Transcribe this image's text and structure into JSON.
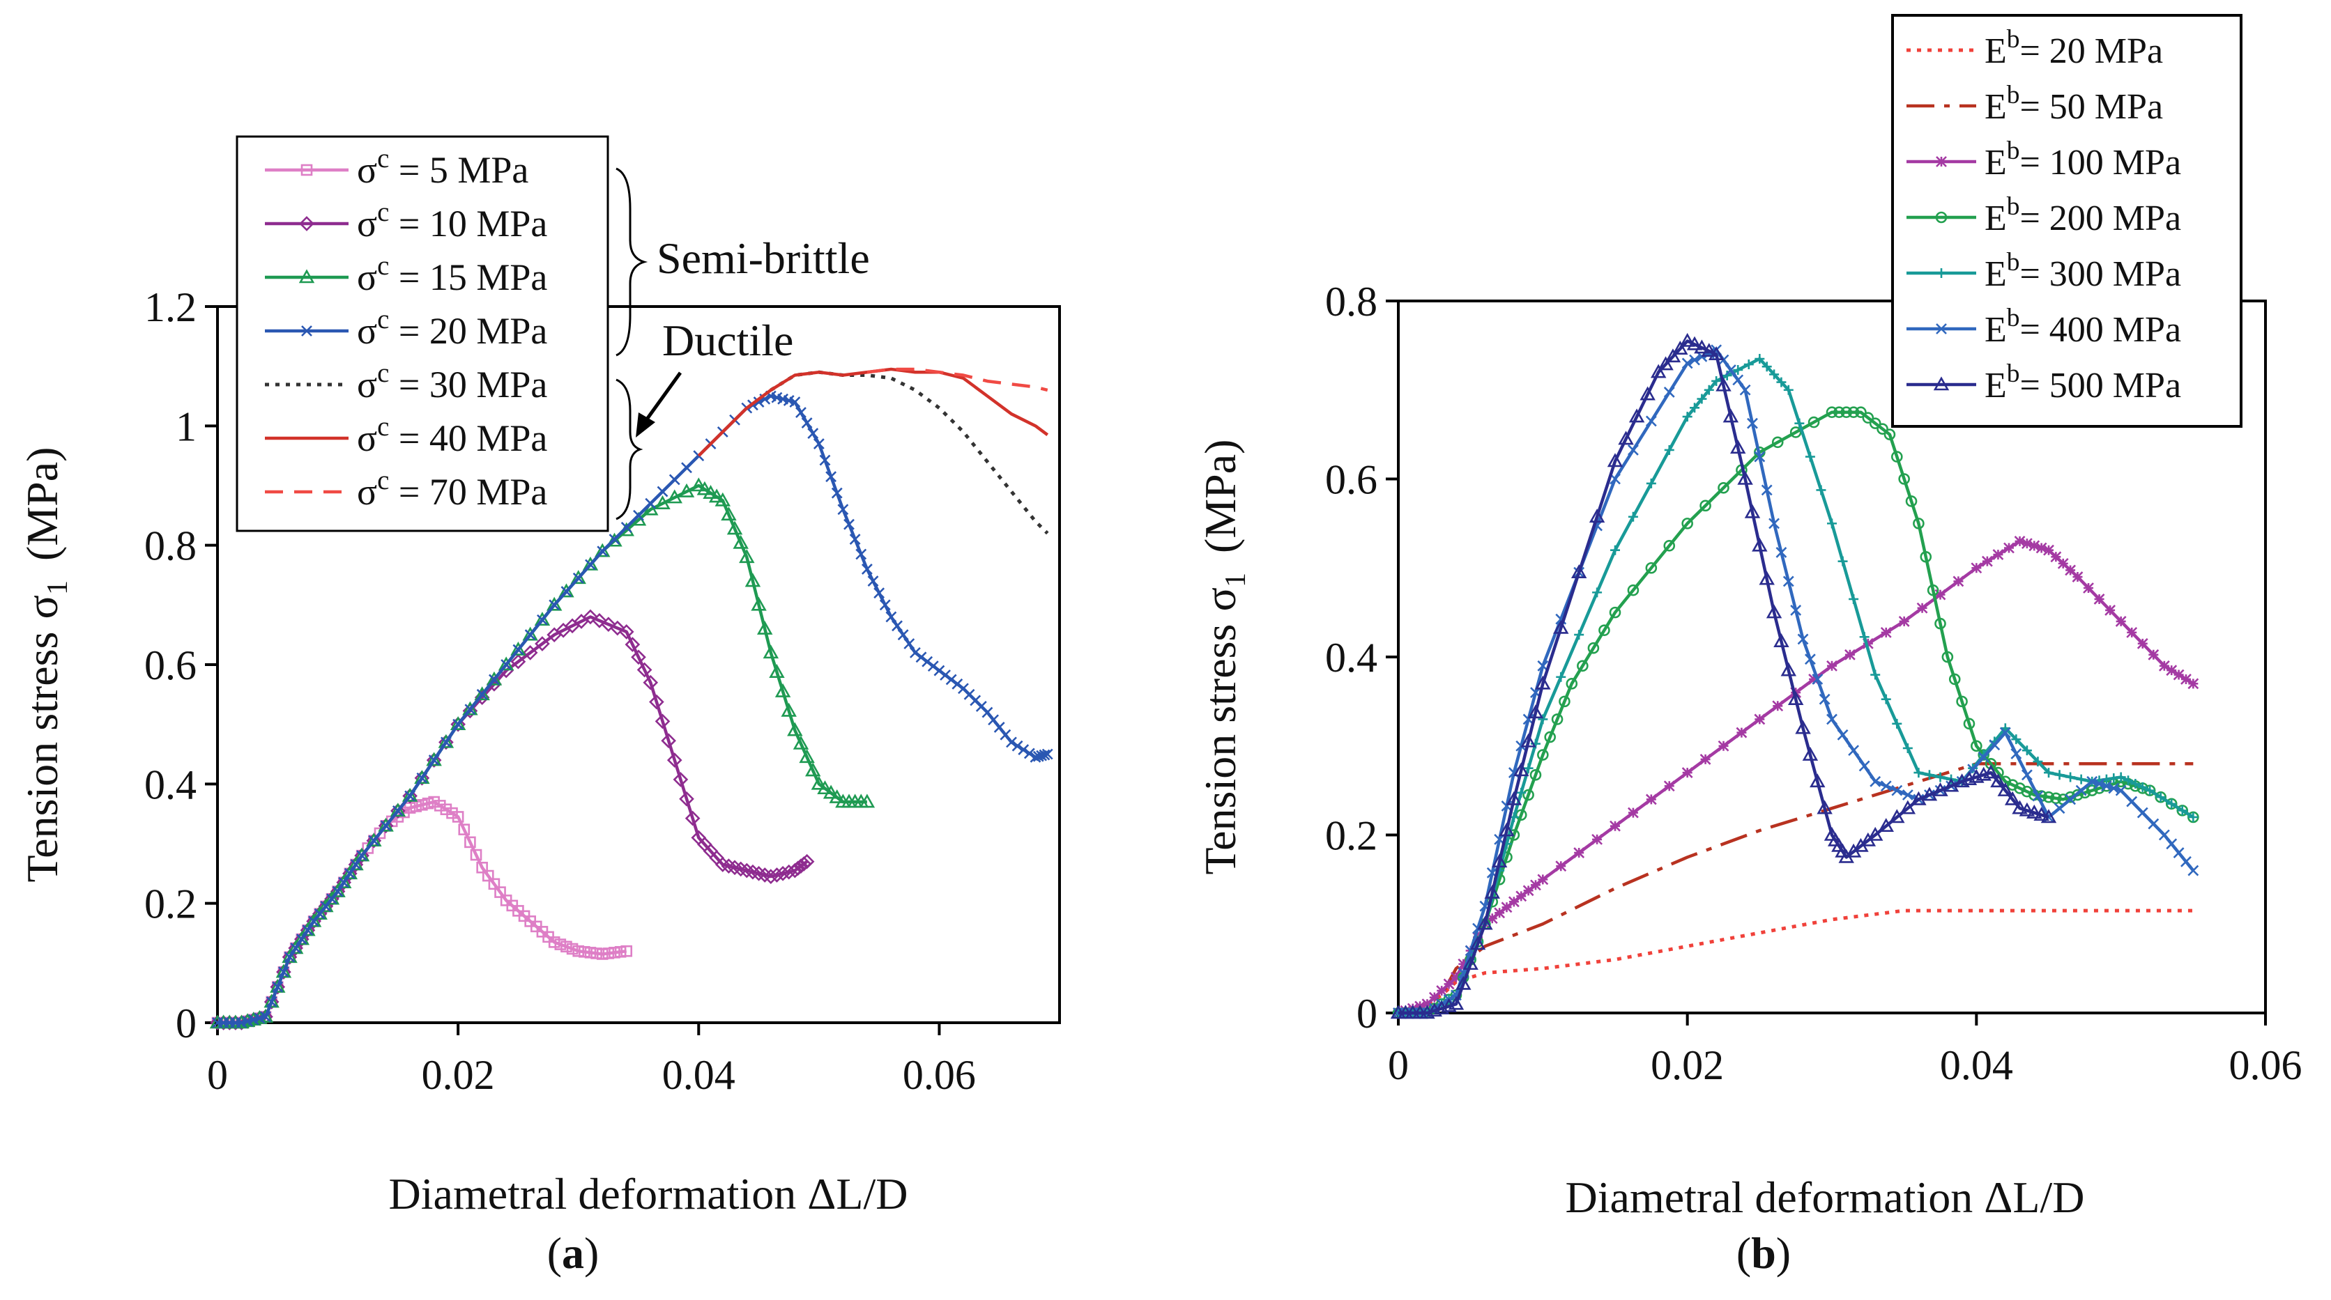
{
  "colors": {
    "s5": "#de7fc6",
    "s10": "#8e2c8f",
    "s15": "#1e9a52",
    "s20": "#2a57b2",
    "s30": "#333333",
    "s40": "#d2322a",
    "s70": "#f04a44",
    "e20": "#f0413a",
    "e50": "#b83220",
    "e100": "#a43aa3",
    "e200": "#23a04f",
    "e300": "#189a98",
    "e400": "#3068be",
    "e500": "#2a2c8e"
  },
  "chart_data": [
    {
      "type": "line",
      "panel_label": "a",
      "xlabel": "Diametral deformation   ΔL/D",
      "ylabel": "Tension stress",
      "ylabel_symbol": "σ",
      "ylabel_sub": "1",
      "ylabel_unit": "(MPa)",
      "xlim": [
        0,
        0.07
      ],
      "ylim": [
        0,
        1.2
      ],
      "x_ticks": [
        0,
        0.02,
        0.04,
        0.06
      ],
      "x_tick_labels": [
        "0",
        "0.02",
        "0.04",
        "0.06"
      ],
      "y_ticks": [
        0,
        0.2,
        0.4,
        0.6,
        0.8,
        1.0,
        1.2
      ],
      "y_tick_labels": [
        "0",
        "0.2",
        "0.4",
        "0.6",
        "0.8",
        "1",
        "1.2"
      ],
      "annotations": {
        "semi_brittle": "Semi-brittle",
        "ductile": "Ductile"
      },
      "series": [
        {
          "id": "s5",
          "sym": "σ",
          "sup": "c",
          "val": " =   5 MPa",
          "marker": "square",
          "dash": "solid",
          "color_key": "s5",
          "x": [
            0,
            0.002,
            0.004,
            0.006,
            0.008,
            0.01,
            0.012,
            0.014,
            0.016,
            0.018,
            0.02,
            0.022,
            0.024,
            0.026,
            0.028,
            0.03,
            0.032,
            0.034
          ],
          "y": [
            0,
            0,
            0.01,
            0.11,
            0.17,
            0.22,
            0.28,
            0.33,
            0.36,
            0.37,
            0.345,
            0.26,
            0.205,
            0.17,
            0.135,
            0.12,
            0.115,
            0.12
          ]
        },
        {
          "id": "s10",
          "sym": "σ",
          "sup": "c",
          "val": " = 10 MPa",
          "marker": "diamond",
          "dash": "solid",
          "color_key": "s10",
          "x": [
            0,
            0.002,
            0.004,
            0.006,
            0.008,
            0.01,
            0.012,
            0.016,
            0.02,
            0.024,
            0.028,
            0.031,
            0.034,
            0.036,
            0.038,
            0.04,
            0.042,
            0.044,
            0.046,
            0.048,
            0.049
          ],
          "y": [
            0,
            0,
            0.01,
            0.11,
            0.17,
            0.22,
            0.28,
            0.38,
            0.5,
            0.59,
            0.65,
            0.68,
            0.655,
            0.57,
            0.44,
            0.31,
            0.265,
            0.255,
            0.245,
            0.255,
            0.27
          ]
        },
        {
          "id": "s15",
          "sym": "σ",
          "sup": "c",
          "val": " = 15 MPa",
          "marker": "triangle",
          "dash": "solid",
          "color_key": "s15",
          "x": [
            0,
            0.002,
            0.004,
            0.006,
            0.008,
            0.01,
            0.012,
            0.016,
            0.02,
            0.024,
            0.028,
            0.032,
            0.036,
            0.04,
            0.042,
            0.044,
            0.046,
            0.048,
            0.05,
            0.052,
            0.054
          ],
          "y": [
            0,
            0,
            0.01,
            0.11,
            0.17,
            0.22,
            0.28,
            0.38,
            0.5,
            0.6,
            0.7,
            0.79,
            0.86,
            0.9,
            0.875,
            0.78,
            0.62,
            0.49,
            0.4,
            0.37,
            0.37
          ]
        },
        {
          "id": "s20",
          "sym": "σ",
          "sup": "c",
          "val": " = 20 MPa",
          "marker": "x",
          "dash": "solid",
          "color_key": "s20",
          "x": [
            0,
            0.002,
            0.004,
            0.006,
            0.008,
            0.01,
            0.012,
            0.016,
            0.02,
            0.024,
            0.028,
            0.032,
            0.036,
            0.04,
            0.044,
            0.046,
            0.048,
            0.05,
            0.052,
            0.054,
            0.056,
            0.058,
            0.06,
            0.062,
            0.064,
            0.066,
            0.068,
            0.069
          ],
          "y": [
            0,
            0,
            0.01,
            0.11,
            0.17,
            0.22,
            0.28,
            0.38,
            0.5,
            0.6,
            0.7,
            0.79,
            0.87,
            0.95,
            1.03,
            1.05,
            1.04,
            0.97,
            0.86,
            0.76,
            0.68,
            0.62,
            0.59,
            0.56,
            0.52,
            0.47,
            0.445,
            0.45
          ]
        },
        {
          "id": "s30",
          "sym": "σ",
          "sup": "c",
          "val": " = 30 MPa",
          "marker": "none",
          "dash": "dotted",
          "color_key": "s30",
          "x": [
            0.046,
            0.048,
            0.05,
            0.052,
            0.054,
            0.056,
            0.058,
            0.06,
            0.062,
            0.064,
            0.066,
            0.068,
            0.069
          ],
          "y": [
            1.06,
            1.085,
            1.09,
            1.085,
            1.085,
            1.08,
            1.06,
            1.03,
            0.99,
            0.94,
            0.89,
            0.84,
            0.82
          ]
        },
        {
          "id": "s40",
          "sym": "σ",
          "sup": "c",
          "val": " = 40 MPa",
          "marker": "none",
          "dash": "solid",
          "color_key": "s40",
          "x": [
            0.04,
            0.042,
            0.044,
            0.046,
            0.048,
            0.05,
            0.052,
            0.054,
            0.056,
            0.058,
            0.06,
            0.062,
            0.064,
            0.066,
            0.068,
            0.069
          ],
          "y": [
            0.95,
            0.99,
            1.03,
            1.06,
            1.085,
            1.09,
            1.085,
            1.09,
            1.095,
            1.09,
            1.09,
            1.08,
            1.05,
            1.02,
            1.0,
            0.985
          ]
        },
        {
          "id": "s70",
          "sym": "σ",
          "sup": "c",
          "val": " = 70 MPa",
          "marker": "none",
          "dash": "dashed",
          "color_key": "s70",
          "x": [
            0.054,
            0.056,
            0.058,
            0.06,
            0.062,
            0.064,
            0.066,
            0.068,
            0.069
          ],
          "y": [
            1.09,
            1.095,
            1.095,
            1.09,
            1.085,
            1.075,
            1.07,
            1.065,
            1.06
          ]
        }
      ],
      "common_rise": {
        "x": [
          0,
          0.002,
          0.004,
          0.006,
          0.008,
          0.01,
          0.012,
          0.016,
          0.02,
          0.024,
          0.028,
          0.032,
          0.036,
          0.04
        ],
        "y": [
          0,
          0,
          0.01,
          0.11,
          0.17,
          0.22,
          0.28,
          0.38,
          0.5,
          0.6,
          0.7,
          0.79,
          0.87,
          0.95
        ]
      }
    },
    {
      "type": "line",
      "panel_label": "b",
      "xlabel": "Diametral deformation   ΔL/D",
      "ylabel": "Tension stress",
      "ylabel_symbol": "σ",
      "ylabel_sub": "1",
      "ylabel_unit": "(MPa)",
      "xlim": [
        0,
        0.06
      ],
      "ylim": [
        0,
        0.8
      ],
      "x_ticks": [
        0,
        0.02,
        0.04,
        0.06
      ],
      "x_tick_labels": [
        "0",
        "0.02",
        "0.04",
        "0.06"
      ],
      "y_ticks": [
        0,
        0.2,
        0.4,
        0.6,
        0.8
      ],
      "y_tick_labels": [
        "0",
        "0.2",
        "0.4",
        "0.6",
        "0.8"
      ],
      "series": [
        {
          "id": "e20",
          "sym": "E",
          "sup": "b",
          "val": "=   20 MPa",
          "marker": "none",
          "dash": "dotted",
          "color_key": "e20",
          "x": [
            0,
            0.002,
            0.003,
            0.004,
            0.006,
            0.01,
            0.015,
            0.02,
            0.025,
            0.03,
            0.035,
            0.04,
            0.045,
            0.05,
            0.055
          ],
          "y": [
            0,
            0.01,
            0.02,
            0.035,
            0.045,
            0.05,
            0.06,
            0.075,
            0.09,
            0.105,
            0.115,
            0.115,
            0.115,
            0.115,
            0.115
          ]
        },
        {
          "id": "e50",
          "sym": "E",
          "sup": "b",
          "val": "=   50 MPa",
          "marker": "none",
          "dash": "longdash",
          "color_key": "e50",
          "x": [
            0,
            0.002,
            0.003,
            0.004,
            0.006,
            0.01,
            0.015,
            0.02,
            0.025,
            0.03,
            0.035,
            0.04,
            0.045,
            0.05,
            0.055
          ],
          "y": [
            0,
            0.01,
            0.02,
            0.05,
            0.075,
            0.1,
            0.14,
            0.175,
            0.205,
            0.23,
            0.255,
            0.28,
            0.28,
            0.28,
            0.28
          ]
        },
        {
          "id": "e100",
          "sym": "E",
          "sup": "b",
          "val": "= 100 MPa",
          "marker": "star",
          "dash": "solid",
          "color_key": "e100",
          "x": [
            0,
            0.002,
            0.004,
            0.006,
            0.008,
            0.01,
            0.015,
            0.02,
            0.025,
            0.03,
            0.035,
            0.04,
            0.043,
            0.045,
            0.047,
            0.05,
            0.053,
            0.055
          ],
          "y": [
            0,
            0.01,
            0.04,
            0.1,
            0.125,
            0.15,
            0.21,
            0.27,
            0.33,
            0.39,
            0.44,
            0.5,
            0.53,
            0.52,
            0.49,
            0.44,
            0.39,
            0.37
          ]
        },
        {
          "id": "e200",
          "sym": "E",
          "sup": "b",
          "val": "= 200 MPa",
          "marker": "circle",
          "dash": "solid",
          "color_key": "e200",
          "x": [
            0,
            0.002,
            0.004,
            0.006,
            0.008,
            0.01,
            0.012,
            0.015,
            0.02,
            0.025,
            0.03,
            0.032,
            0.034,
            0.036,
            0.038,
            0.04,
            0.042,
            0.044,
            0.046,
            0.048,
            0.05,
            0.052,
            0.055
          ],
          "y": [
            0,
            0,
            0.02,
            0.1,
            0.2,
            0.29,
            0.37,
            0.45,
            0.55,
            0.63,
            0.675,
            0.675,
            0.65,
            0.55,
            0.4,
            0.3,
            0.26,
            0.245,
            0.24,
            0.25,
            0.26,
            0.25,
            0.22
          ]
        },
        {
          "id": "e300",
          "sym": "E",
          "sup": "b",
          "val": "= 300 MPa",
          "marker": "plus",
          "dash": "solid",
          "color_key": "e300",
          "x": [
            0,
            0.002,
            0.004,
            0.006,
            0.008,
            0.01,
            0.015,
            0.02,
            0.022,
            0.025,
            0.027,
            0.03,
            0.033,
            0.036,
            0.039,
            0.042,
            0.045,
            0.048,
            0.05,
            0.052,
            0.055
          ],
          "y": [
            0,
            0,
            0.02,
            0.1,
            0.22,
            0.33,
            0.52,
            0.67,
            0.71,
            0.735,
            0.7,
            0.55,
            0.38,
            0.27,
            0.26,
            0.32,
            0.27,
            0.26,
            0.265,
            0.25,
            0.22
          ]
        },
        {
          "id": "e400",
          "sym": "E",
          "sup": "b",
          "val": "= 400 MPa",
          "marker": "x",
          "dash": "solid",
          "color_key": "e400",
          "x": [
            0,
            0.002,
            0.004,
            0.006,
            0.008,
            0.01,
            0.015,
            0.02,
            0.022,
            0.024,
            0.026,
            0.028,
            0.03,
            0.033,
            0.036,
            0.039,
            0.042,
            0.045,
            0.048,
            0.05,
            0.053,
            0.055
          ],
          "y": [
            0,
            0,
            0.02,
            0.12,
            0.27,
            0.39,
            0.6,
            0.73,
            0.745,
            0.7,
            0.55,
            0.42,
            0.33,
            0.26,
            0.24,
            0.26,
            0.315,
            0.22,
            0.26,
            0.25,
            0.2,
            0.16
          ]
        },
        {
          "id": "e500",
          "sym": "E",
          "sup": "b",
          "val": "= 500 MPa",
          "marker": "triangle",
          "dash": "solid",
          "color_key": "e500",
          "x": [
            0,
            0.002,
            0.004,
            0.006,
            0.008,
            0.01,
            0.015,
            0.018,
            0.02,
            0.022,
            0.024,
            0.026,
            0.028,
            0.03,
            0.031,
            0.033,
            0.036,
            0.039,
            0.041,
            0.043,
            0.045
          ],
          "y": [
            0,
            0,
            0.01,
            0.1,
            0.24,
            0.37,
            0.62,
            0.72,
            0.755,
            0.74,
            0.6,
            0.45,
            0.32,
            0.2,
            0.175,
            0.2,
            0.24,
            0.26,
            0.27,
            0.23,
            0.22
          ]
        }
      ]
    }
  ]
}
